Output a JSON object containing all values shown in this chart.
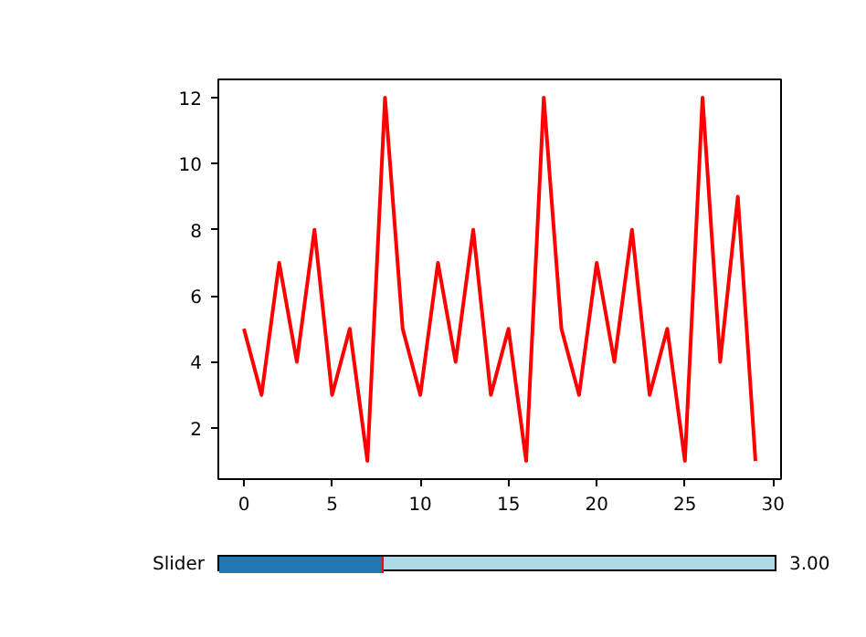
{
  "chart_data": {
    "type": "line",
    "x": [
      0,
      1,
      2,
      3,
      4,
      5,
      6,
      7,
      8,
      9,
      10,
      11,
      12,
      13,
      14,
      15,
      16,
      17,
      18,
      19,
      20,
      21,
      22,
      23,
      24,
      25,
      26,
      27,
      28,
      29
    ],
    "series": [
      {
        "color": "#ff0000",
        "values": [
          5,
          3,
          7,
          4,
          8,
          3,
          5,
          1,
          12,
          5,
          3,
          7,
          4,
          8,
          3,
          5,
          1,
          12,
          5,
          3,
          7,
          4,
          8,
          3,
          5,
          1,
          12,
          4,
          9,
          1
        ]
      }
    ],
    "xlim": [
      -1.45,
      30.45
    ],
    "ylim": [
      0.45,
      12.55
    ],
    "xticks": [
      0,
      5,
      10,
      15,
      20,
      25,
      30
    ],
    "yticks": [
      2,
      4,
      6,
      8,
      10,
      12
    ],
    "grid": false,
    "marker": "none",
    "line_style": "solid",
    "annotations": [
      "Slider",
      "3.00"
    ]
  }
}
